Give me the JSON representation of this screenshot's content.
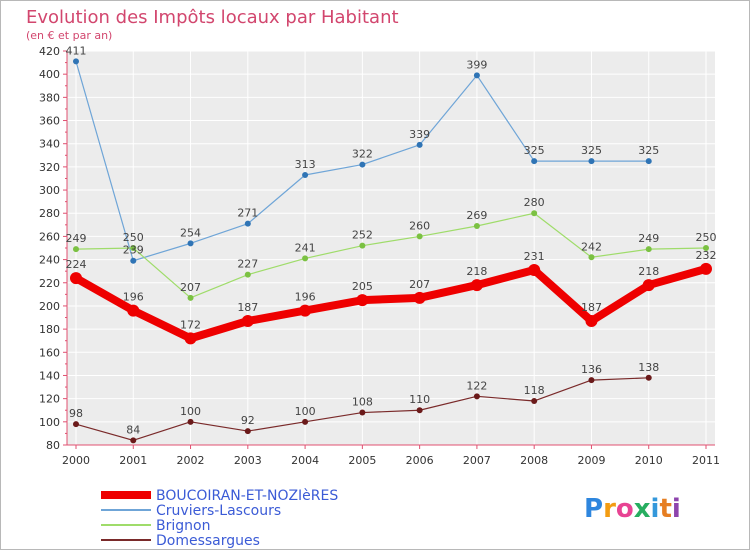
{
  "chart_data": {
    "type": "line",
    "title": "Evolution des Impôts locaux par Habitant",
    "subtitle": "(en € et par an)",
    "xlabel": "",
    "ylabel": "",
    "ylim": [
      80,
      420
    ],
    "ystep": 20,
    "grid": true,
    "legend_position": "bottom-left",
    "categories": [
      "2000",
      "2001",
      "2002",
      "2003",
      "2004",
      "2005",
      "2006",
      "2007",
      "2008",
      "2009",
      "2010",
      "2011"
    ],
    "y_ticks": [
      "80",
      "100",
      "120",
      "140",
      "160",
      "180",
      "200",
      "220",
      "240",
      "260",
      "280",
      "300",
      "320",
      "340",
      "360",
      "380",
      "400",
      "420"
    ],
    "series": [
      {
        "name": "BOUCOIRAN-ET-NOZIèRES",
        "color": "#ee0000",
        "values": [
          224,
          196,
          172,
          187,
          196,
          205,
          207,
          218,
          231,
          187,
          218,
          232
        ],
        "labels": [
          "224",
          "196",
          "172",
          "187",
          "196",
          "205",
          "207",
          "218",
          "231",
          "187",
          "218",
          "232"
        ],
        "emphasis": true
      },
      {
        "name": "Cruviers-Lascours",
        "color": "#6fa5d7",
        "marker": "#2f74b5",
        "values": [
          411,
          239,
          254,
          271,
          313,
          322,
          339,
          399,
          325,
          325,
          325,
          null
        ],
        "labels": [
          "411",
          "239",
          "254",
          "271",
          "313",
          "322",
          "339",
          "399",
          "325",
          "325",
          "325",
          ""
        ]
      },
      {
        "name": "Brignon",
        "color": "#9fdc6a",
        "marker": "#7bc142",
        "values": [
          249,
          250,
          207,
          227,
          241,
          252,
          260,
          269,
          280,
          242,
          249,
          250
        ],
        "labels": [
          "249",
          "250",
          "207",
          "227",
          "241",
          "252",
          "260",
          "269",
          "280",
          "242",
          "249",
          "250"
        ]
      },
      {
        "name": "Domessargues",
        "color": "#7a2a2a",
        "marker": "#6b1a1a",
        "values": [
          98,
          84,
          100,
          92,
          100,
          108,
          110,
          122,
          118,
          136,
          138,
          null
        ],
        "labels": [
          "98",
          "84",
          "100",
          "92",
          "100",
          "108",
          "110",
          "122",
          "118",
          "136",
          "138",
          ""
        ]
      }
    ]
  },
  "logo": {
    "letters": [
      "P",
      "r",
      "o",
      "x",
      "i",
      "t",
      "i"
    ],
    "colors": [
      "#2e86de",
      "#f39c12",
      "#e84393",
      "#27ae60",
      "#3498db",
      "#e67e22",
      "#8e44ad"
    ]
  }
}
